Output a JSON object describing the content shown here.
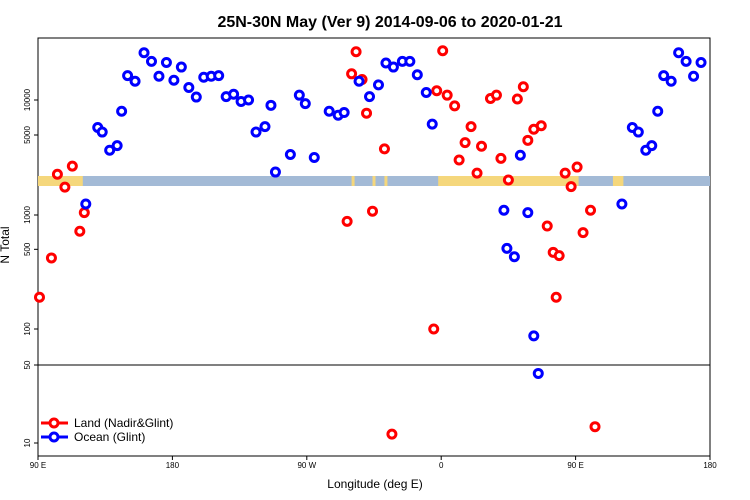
{
  "chart_data": {
    "type": "scatter",
    "title": "25N-30N May (Ver 9)   2014-09-06 to 2020-01-21",
    "xlabel": "Longitude (deg E)",
    "ylabel": "N Total",
    "xlim": [
      90,
      540
    ],
    "x_ticks": [
      {
        "value": 90,
        "label": "90 E"
      },
      {
        "value": 180,
        "label": "180"
      },
      {
        "value": 270,
        "label": "90 W"
      },
      {
        "value": 360,
        "label": "0"
      },
      {
        "value": 450,
        "label": "90 E"
      },
      {
        "value": 540,
        "label": "180"
      }
    ],
    "y_scale": "log",
    "y_ticks_upper": [
      {
        "value": 5000,
        "label": "5000"
      },
      {
        "value": 10000,
        "label": "10000"
      }
    ],
    "y_ticks_middle": [
      {
        "value": 100,
        "label": "100"
      },
      {
        "value": 500,
        "label": "500"
      },
      {
        "value": 1000,
        "label": "1000"
      }
    ],
    "y_ticks_lower": [
      {
        "value": 10,
        "label": "10"
      },
      {
        "value": 50,
        "label": "50"
      }
    ],
    "grid": false,
    "legend_position": "bottom-left",
    "land_mask_colors": {
      "land": "#f5d77c",
      "ocean": "#a3bad6"
    },
    "series": [
      {
        "name": "Land (Nadir&Glint)",
        "color": "#ff0000",
        "points": [
          [
            91,
            190
          ],
          [
            99,
            420
          ],
          [
            103,
            2300
          ],
          [
            108,
            1780
          ],
          [
            113,
            2700
          ],
          [
            118,
            720
          ],
          [
            121,
            1050
          ],
          [
            297,
            880
          ],
          [
            300,
            16800
          ],
          [
            303,
            26000
          ],
          [
            307,
            15000
          ],
          [
            310,
            7700
          ],
          [
            314,
            1080
          ],
          [
            322,
            3800
          ],
          [
            327,
            12
          ],
          [
            355,
            100
          ],
          [
            357,
            12000
          ],
          [
            361,
            26500
          ],
          [
            364,
            11000
          ],
          [
            369,
            8900
          ],
          [
            372,
            3050
          ],
          [
            376,
            4300
          ],
          [
            380,
            5900
          ],
          [
            384,
            2350
          ],
          [
            387,
            4000
          ],
          [
            393,
            10300
          ],
          [
            397,
            11000
          ],
          [
            400,
            3150
          ],
          [
            405,
            2050
          ],
          [
            411,
            10200
          ],
          [
            415,
            13000
          ],
          [
            418,
            4500
          ],
          [
            422,
            5600
          ],
          [
            427,
            6000
          ],
          [
            431,
            800
          ],
          [
            435,
            470
          ],
          [
            437,
            190
          ],
          [
            439,
            440
          ],
          [
            443,
            2350
          ],
          [
            447,
            1800
          ],
          [
            451,
            2650
          ],
          [
            455,
            700
          ],
          [
            460,
            1100
          ],
          [
            463,
            14
          ]
        ]
      },
      {
        "name": "Ocean (Glint)",
        "color": "#0000ff",
        "points": [
          [
            122,
            1250
          ],
          [
            130,
            5800
          ],
          [
            133,
            5300
          ],
          [
            138,
            3700
          ],
          [
            143,
            4050
          ],
          [
            146,
            8000
          ],
          [
            150,
            16200
          ],
          [
            155,
            14500
          ],
          [
            161,
            25500
          ],
          [
            166,
            21500
          ],
          [
            171,
            16000
          ],
          [
            176,
            21000
          ],
          [
            181,
            14800
          ],
          [
            186,
            19200
          ],
          [
            191,
            12800
          ],
          [
            196,
            10600
          ],
          [
            201,
            15700
          ],
          [
            206,
            16000
          ],
          [
            211,
            16200
          ],
          [
            216,
            10700
          ],
          [
            221,
            11200
          ],
          [
            226,
            9700
          ],
          [
            231,
            10000
          ],
          [
            236,
            5300
          ],
          [
            242,
            5900
          ],
          [
            246,
            9000
          ],
          [
            249,
            2400
          ],
          [
            259,
            3400
          ],
          [
            265,
            11000
          ],
          [
            269,
            9300
          ],
          [
            275,
            3200
          ],
          [
            285,
            8000
          ],
          [
            291,
            7400
          ],
          [
            295,
            7800
          ],
          [
            305,
            14500
          ],
          [
            312,
            10700
          ],
          [
            318,
            13500
          ],
          [
            323,
            20800
          ],
          [
            328,
            19200
          ],
          [
            334,
            21500
          ],
          [
            339,
            21500
          ],
          [
            344,
            16500
          ],
          [
            350,
            11600
          ],
          [
            354,
            6200
          ],
          [
            402,
            1100
          ],
          [
            404,
            510
          ],
          [
            409,
            430
          ],
          [
            413,
            3350
          ],
          [
            418,
            1050
          ],
          [
            422,
            87
          ],
          [
            425,
            42
          ],
          [
            481,
            1250
          ],
          [
            488,
            5800
          ],
          [
            492,
            5300
          ],
          [
            497,
            3700
          ],
          [
            501,
            4050
          ],
          [
            505,
            8000
          ],
          [
            509,
            16200
          ],
          [
            514,
            14500
          ],
          [
            519,
            25500
          ],
          [
            524,
            21500
          ],
          [
            529,
            16000
          ],
          [
            534,
            21000
          ]
        ]
      }
    ]
  }
}
